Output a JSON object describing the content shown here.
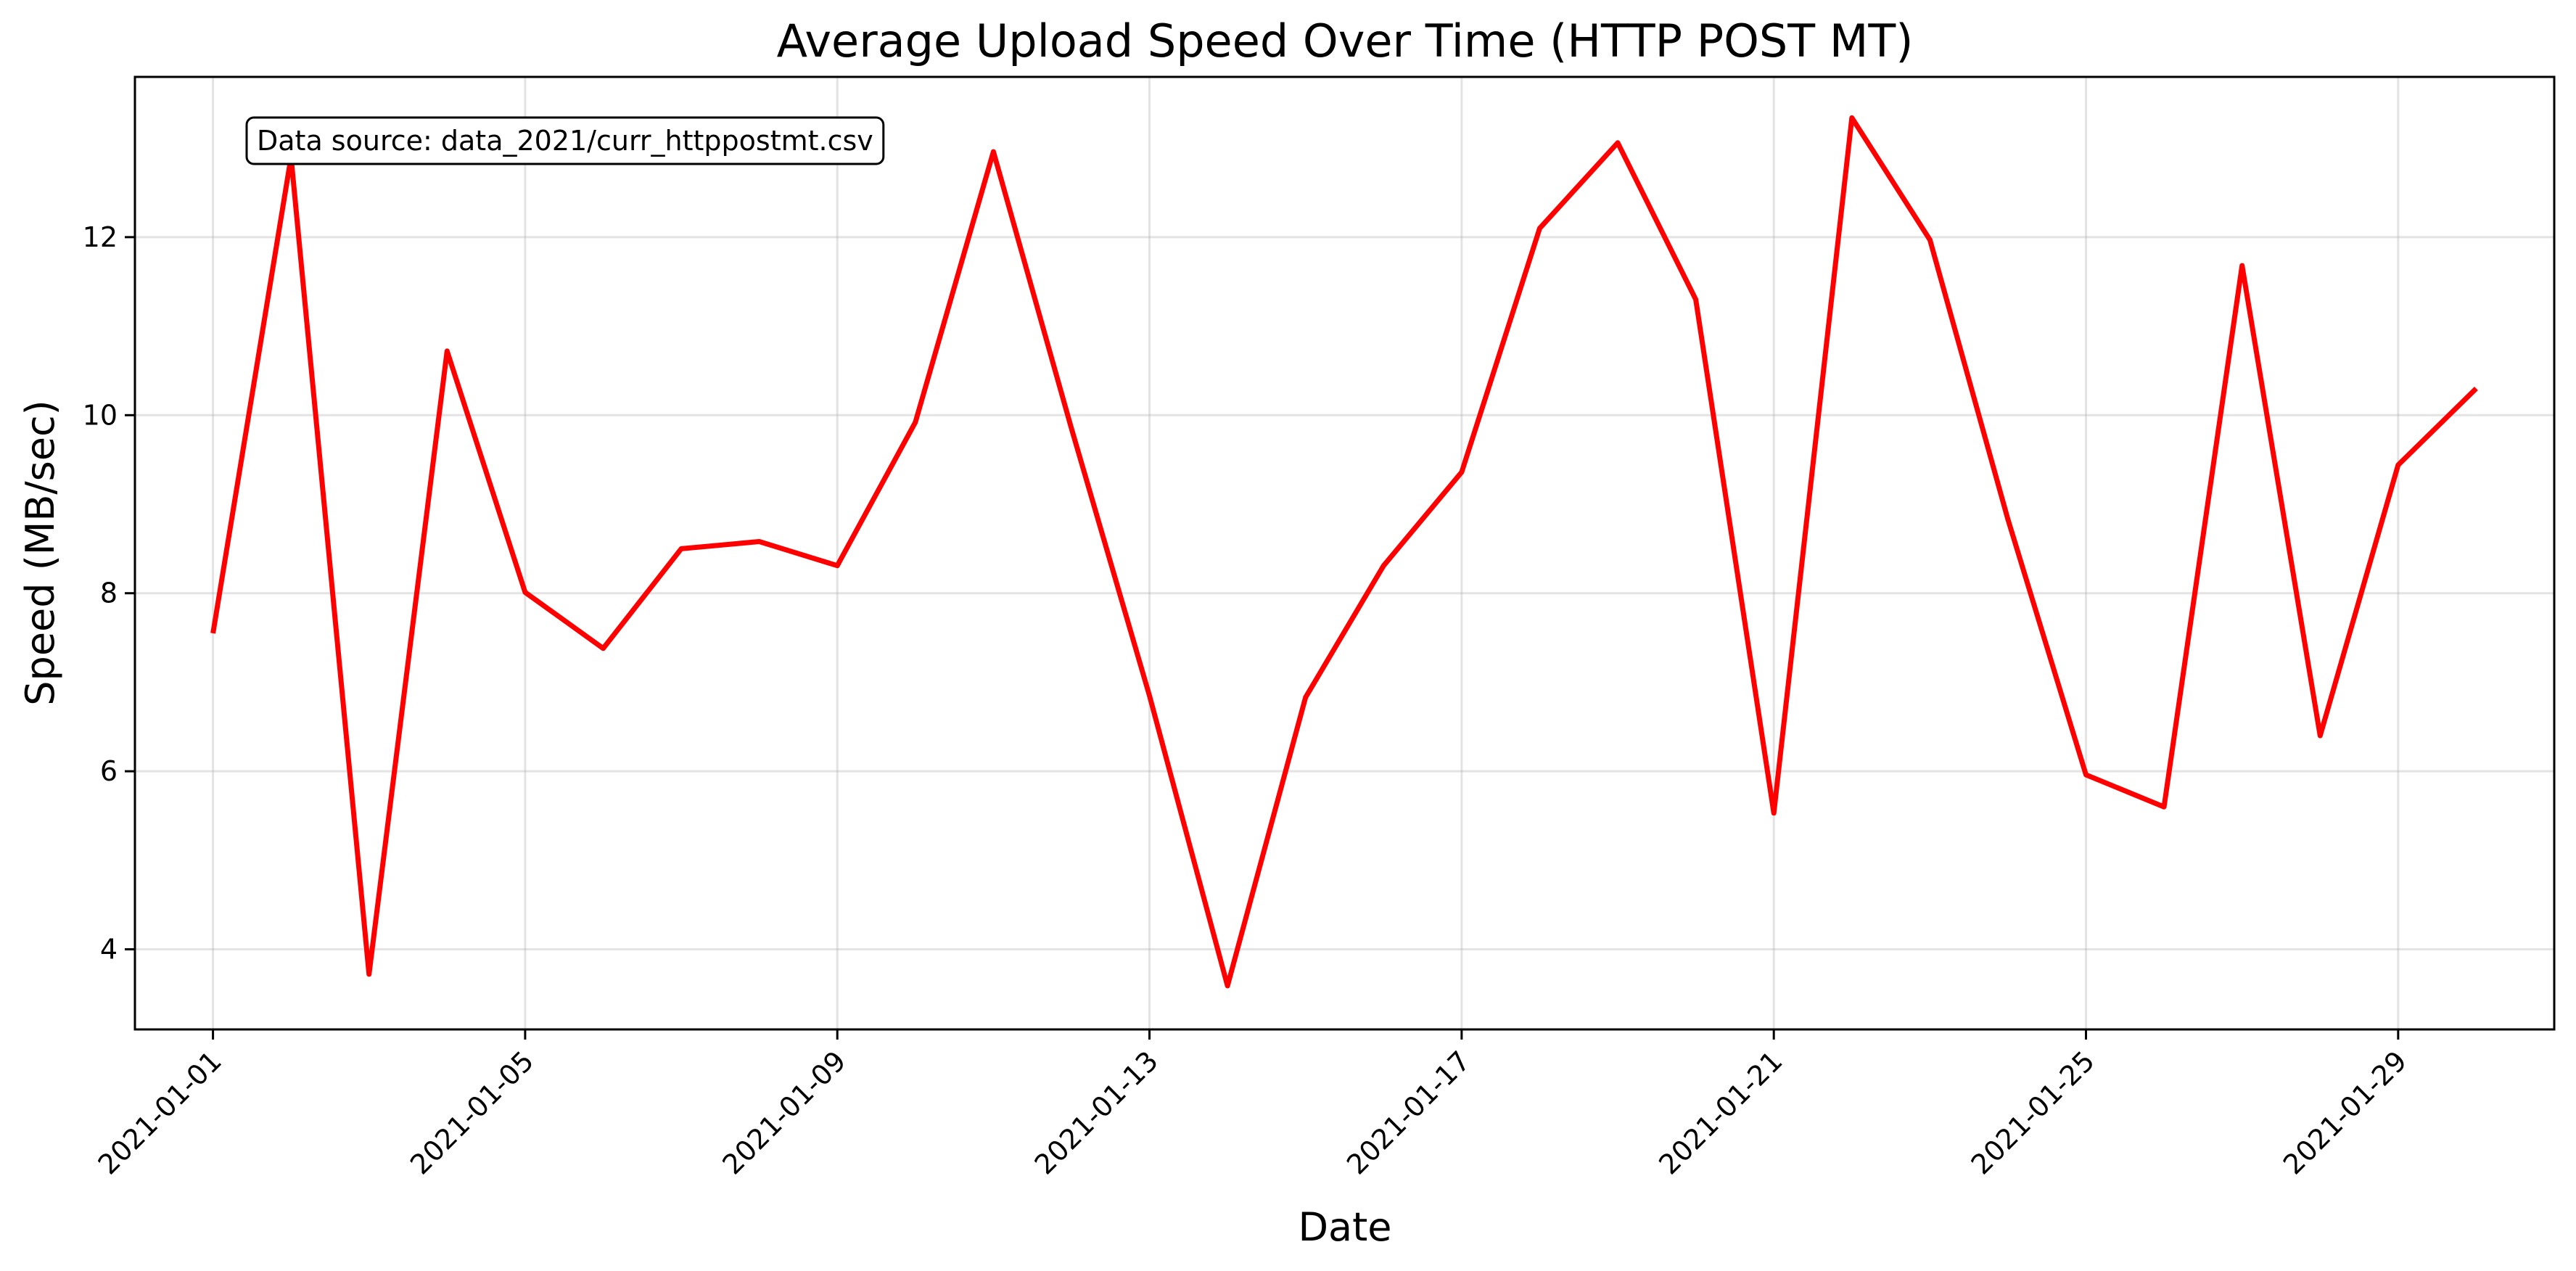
{
  "chart_data": {
    "type": "line",
    "title": "Average Upload Speed Over Time (HTTP POST MT)",
    "xlabel": "Date",
    "ylabel": "Speed (MB/sec)",
    "annotation": "Data source: data_2021/curr_httppostmt.csv",
    "x_ticks": [
      "2021-01-01",
      "2021-01-05",
      "2021-01-09",
      "2021-01-13",
      "2021-01-17",
      "2021-01-21",
      "2021-01-25",
      "2021-01-29"
    ],
    "y_ticks": [
      4,
      6,
      8,
      10,
      12
    ],
    "ylim": [
      3.1,
      13.8
    ],
    "xlim": [
      "2020-12-31",
      "2021-01-31"
    ],
    "grid": true,
    "series": [
      {
        "color": "#ff0000",
        "x": [
          "2021-01-01",
          "2021-01-02",
          "2021-01-03",
          "2021-01-04",
          "2021-01-05",
          "2021-01-06",
          "2021-01-07",
          "2021-01-08",
          "2021-01-09",
          "2021-01-10",
          "2021-01-11",
          "2021-01-12",
          "2021-01-13",
          "2021-01-14",
          "2021-01-15",
          "2021-01-16",
          "2021-01-17",
          "2021-01-18",
          "2021-01-19",
          "2021-01-20",
          "2021-01-21",
          "2021-01-22",
          "2021-01-23",
          "2021-01-24",
          "2021-01-25",
          "2021-01-26",
          "2021-01-27",
          "2021-01-28",
          "2021-01-29",
          "2021-01-30"
        ],
        "values": [
          7.55,
          12.9,
          3.72,
          10.72,
          8.01,
          7.38,
          8.5,
          8.58,
          8.31,
          9.92,
          12.96,
          9.85,
          6.85,
          3.59,
          6.83,
          8.31,
          9.36,
          12.1,
          13.06,
          11.3,
          5.53,
          13.34,
          11.97,
          8.83,
          5.96,
          5.6,
          11.68,
          6.4,
          9.44,
          10.3
        ]
      }
    ]
  }
}
